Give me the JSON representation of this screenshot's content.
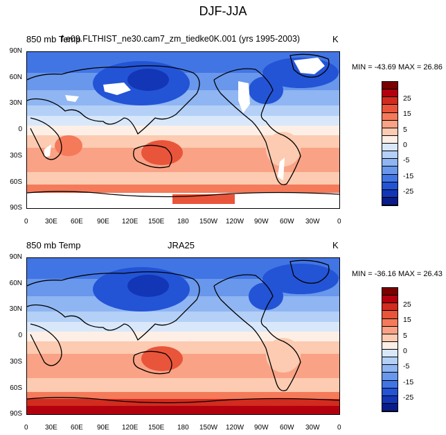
{
  "figure": {
    "title": "DJF-JJA"
  },
  "panels": [
    {
      "left_label": "850 mb Temp",
      "center_label": "f.e09.FLTHIST_ne30.cam7_zm_tiedke0K.001 (yrs 1995-2003)",
      "units": "K",
      "minmax": "MIN = -43.69 MAX =  26.86",
      "has_missing_masks": true
    },
    {
      "left_label": "850 mb Temp",
      "center_label": "JRA25",
      "units": "K",
      "minmax": "MIN = -36.16 MAX =  26.43",
      "has_missing_masks": false
    }
  ],
  "axes": {
    "lat_labels": [
      "90N",
      "60N",
      "30N",
      "0",
      "30S",
      "60S",
      "90S"
    ],
    "lon_labels": [
      "0",
      "30E",
      "60E",
      "90E",
      "120E",
      "150E",
      "180",
      "150W",
      "120W",
      "90W",
      "60W",
      "30W",
      "0"
    ]
  },
  "colorbar": {
    "labels": [
      "25",
      "15",
      "5",
      "0",
      "-5",
      "-15",
      "-25"
    ],
    "colors": [
      "#7a0000",
      "#b3000f",
      "#d22b1f",
      "#e9553a",
      "#f47a5a",
      "#f9a285",
      "#fccbb1",
      "#fdefe6",
      "#d9e7fb",
      "#b4d0f7",
      "#8fb5f2",
      "#6897ec",
      "#4275e4",
      "#2354d6",
      "#1236b5",
      "#0a1c8a"
    ]
  }
}
